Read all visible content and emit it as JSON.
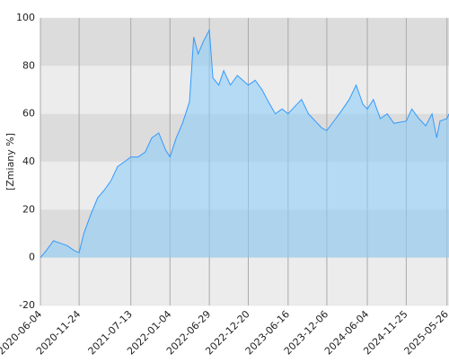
{
  "chart_data": {
    "type": "area",
    "y_label": "[Zmiany %]",
    "x": [
      "2020-06-04",
      "2020-07-01",
      "2020-08-01",
      "2020-09-01",
      "2020-10-01",
      "2020-11-01",
      "2020-11-24",
      "2020-12-15",
      "2021-01-15",
      "2021-02-15",
      "2021-03-15",
      "2021-04-15",
      "2021-05-15",
      "2021-06-15",
      "2021-07-13",
      "2021-08-15",
      "2021-09-15",
      "2021-10-15",
      "2021-11-15",
      "2021-12-15",
      "2022-01-04",
      "2022-02-01",
      "2022-03-01",
      "2022-04-01",
      "2022-04-20",
      "2022-05-10",
      "2022-06-01",
      "2022-06-29",
      "2022-07-15",
      "2022-08-10",
      "2022-09-01",
      "2022-10-01",
      "2022-11-01",
      "2022-12-20",
      "2023-01-20",
      "2023-02-20",
      "2023-03-20",
      "2023-04-20",
      "2023-05-20",
      "2023-06-16",
      "2023-07-15",
      "2023-08-15",
      "2023-09-15",
      "2023-10-15",
      "2023-11-15",
      "2023-12-06",
      "2024-01-15",
      "2024-02-15",
      "2024-03-15",
      "2024-04-15",
      "2024-05-15",
      "2024-06-04",
      "2024-07-01",
      "2024-08-01",
      "2024-09-01",
      "2024-10-01",
      "2024-11-25",
      "2024-12-20",
      "2025-01-20",
      "2025-02-20",
      "2025-03-20",
      "2025-04-10",
      "2025-04-25",
      "2025-05-26",
      "2025-06-04"
    ],
    "values": [
      0,
      3,
      7,
      6,
      5,
      3,
      2,
      10,
      18,
      25,
      28,
      32,
      38,
      40,
      42,
      42,
      44,
      50,
      52,
      45,
      42,
      50,
      56,
      65,
      92,
      85,
      90,
      95,
      75,
      72,
      78,
      72,
      76,
      72,
      74,
      70,
      65,
      60,
      62,
      60,
      63,
      66,
      60,
      57,
      54,
      53,
      58,
      62,
      66,
      72,
      64,
      62,
      66,
      58,
      60,
      56,
      57,
      62,
      58,
      55,
      60,
      50,
      57,
      58,
      60
    ],
    "color": "#3399ff",
    "fill_color": "#87cefa",
    "xlim": [
      "2020-06-04",
      "2025-06-04"
    ],
    "xticks": [
      "2020-06-04",
      "2020-11-24",
      "2021-07-13",
      "2022-01-04",
      "2022-06-29",
      "2022-12-20",
      "2023-06-16",
      "2023-12-06",
      "2024-06-04",
      "2024-11-25",
      "2025-05-26"
    ],
    "ylim": [
      -20,
      100
    ],
    "yticks": [
      -20,
      0,
      20,
      40,
      60,
      80,
      100
    ],
    "grid": true
  }
}
